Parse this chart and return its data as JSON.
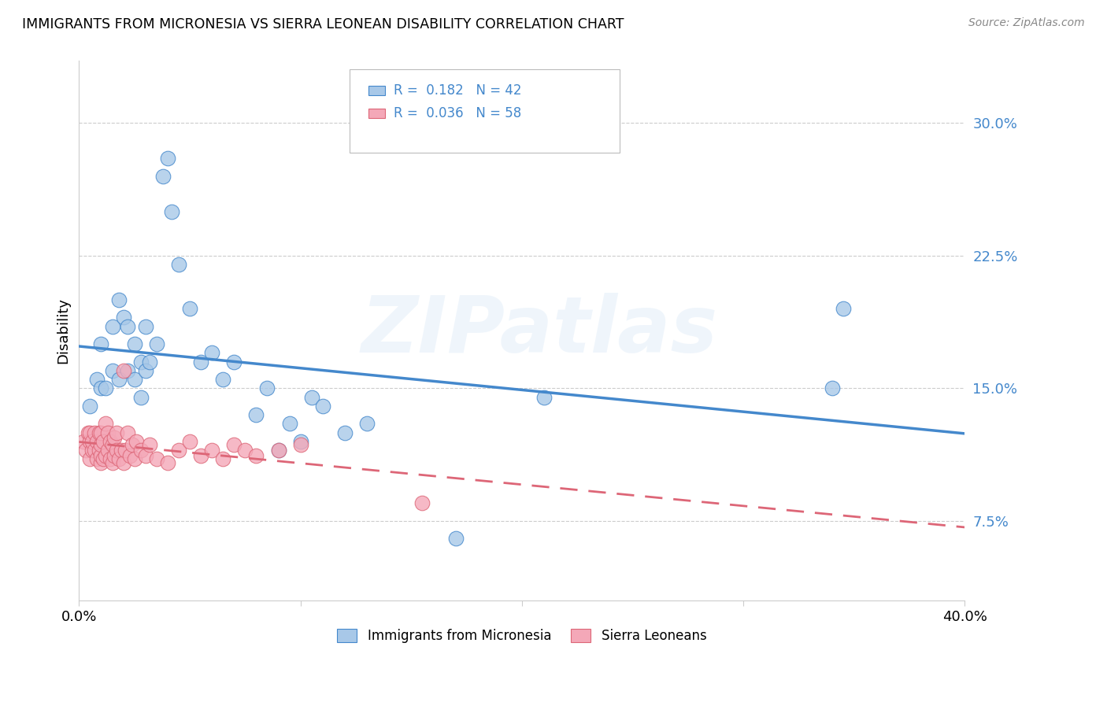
{
  "title": "IMMIGRANTS FROM MICRONESIA VS SIERRA LEONEAN DISABILITY CORRELATION CHART",
  "source": "Source: ZipAtlas.com",
  "ylabel": "Disability",
  "yticks": [
    0.075,
    0.15,
    0.225,
    0.3
  ],
  "ytick_labels": [
    "7.5%",
    "15.0%",
    "22.5%",
    "30.0%"
  ],
  "xlim": [
    0.0,
    0.4
  ],
  "ylim": [
    0.03,
    0.335
  ],
  "blue_R": 0.182,
  "blue_N": 42,
  "pink_R": 0.036,
  "pink_N": 58,
  "blue_color": "#a8c8e8",
  "pink_color": "#f4a8b8",
  "blue_line_color": "#4488cc",
  "pink_line_color": "#dd6677",
  "watermark": "ZIPatlas",
  "legend_blue_label": "Immigrants from Micronesia",
  "legend_pink_label": "Sierra Leoneans",
  "blue_x": [
    0.005,
    0.008,
    0.01,
    0.01,
    0.012,
    0.015,
    0.015,
    0.018,
    0.018,
    0.02,
    0.022,
    0.022,
    0.025,
    0.025,
    0.028,
    0.028,
    0.03,
    0.03,
    0.032,
    0.035,
    0.038,
    0.04,
    0.042,
    0.045,
    0.05,
    0.055,
    0.06,
    0.065,
    0.07,
    0.08,
    0.085,
    0.09,
    0.095,
    0.1,
    0.105,
    0.11,
    0.12,
    0.13,
    0.17,
    0.21,
    0.34,
    0.345
  ],
  "blue_y": [
    0.14,
    0.155,
    0.15,
    0.175,
    0.15,
    0.16,
    0.185,
    0.155,
    0.2,
    0.19,
    0.16,
    0.185,
    0.155,
    0.175,
    0.145,
    0.165,
    0.16,
    0.185,
    0.165,
    0.175,
    0.27,
    0.28,
    0.25,
    0.22,
    0.195,
    0.165,
    0.17,
    0.155,
    0.165,
    0.135,
    0.15,
    0.115,
    0.13,
    0.12,
    0.145,
    0.14,
    0.125,
    0.13,
    0.065,
    0.145,
    0.15,
    0.195
  ],
  "pink_x": [
    0.002,
    0.003,
    0.004,
    0.005,
    0.005,
    0.005,
    0.006,
    0.006,
    0.007,
    0.007,
    0.008,
    0.008,
    0.009,
    0.009,
    0.01,
    0.01,
    0.01,
    0.01,
    0.011,
    0.011,
    0.012,
    0.012,
    0.013,
    0.013,
    0.014,
    0.014,
    0.015,
    0.015,
    0.016,
    0.016,
    0.017,
    0.017,
    0.018,
    0.019,
    0.02,
    0.02,
    0.021,
    0.022,
    0.023,
    0.024,
    0.025,
    0.026,
    0.028,
    0.03,
    0.032,
    0.035,
    0.04,
    0.045,
    0.05,
    0.055,
    0.06,
    0.065,
    0.07,
    0.075,
    0.08,
    0.09,
    0.1,
    0.155
  ],
  "pink_y": [
    0.12,
    0.115,
    0.125,
    0.11,
    0.12,
    0.125,
    0.115,
    0.12,
    0.115,
    0.125,
    0.11,
    0.12,
    0.115,
    0.125,
    0.108,
    0.112,
    0.118,
    0.125,
    0.11,
    0.12,
    0.112,
    0.13,
    0.115,
    0.125,
    0.11,
    0.12,
    0.108,
    0.118,
    0.112,
    0.122,
    0.115,
    0.125,
    0.11,
    0.115,
    0.108,
    0.16,
    0.115,
    0.125,
    0.112,
    0.118,
    0.11,
    0.12,
    0.115,
    0.112,
    0.118,
    0.11,
    0.108,
    0.115,
    0.12,
    0.112,
    0.115,
    0.11,
    0.118,
    0.115,
    0.112,
    0.115,
    0.118,
    0.085
  ]
}
